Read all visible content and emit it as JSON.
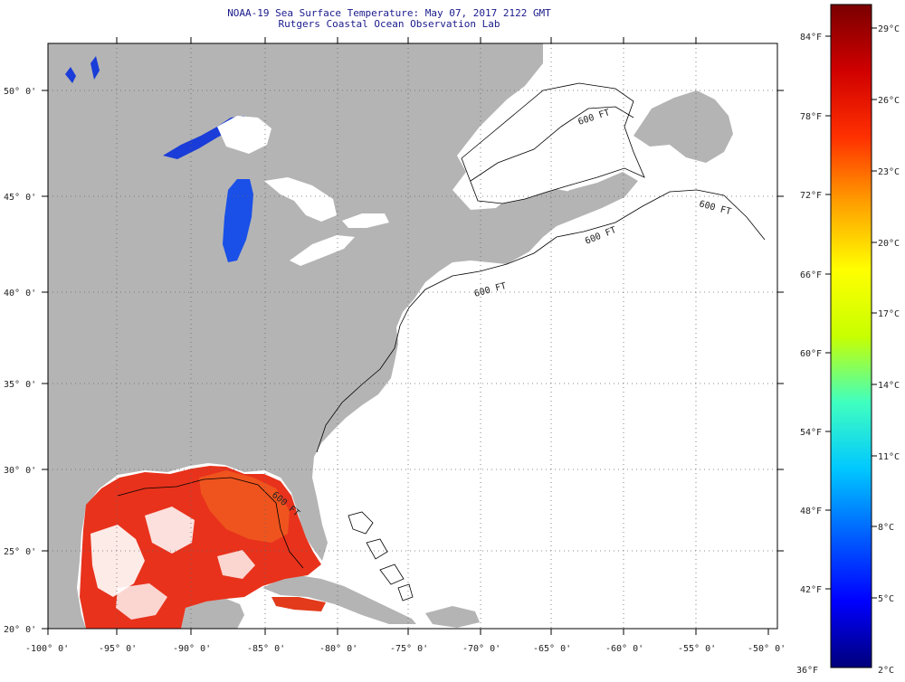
{
  "header": {
    "title_line1": "NOAA-19 Sea Surface Temperature:  May 07, 2017 2122 GMT",
    "title_line2": "Rutgers Coastal Ocean Observation Lab"
  },
  "map": {
    "lat_labels": [
      "50° 0'",
      "45° 0'",
      "40° 0'",
      "35° 0'",
      "30° 0'",
      "25° 0'",
      "20° 0'"
    ],
    "lon_labels": [
      "-100° 0'",
      "-95° 0'",
      "-90° 0'",
      "-85° 0'",
      "-80° 0'",
      "-75° 0'",
      "-70° 0'",
      "-65° 0'",
      "-60° 0'",
      "-55° 0'",
      "-50° 0'"
    ],
    "isobath_labels": [
      "600 FT",
      "600 FT",
      "600 FT",
      "600 FT",
      "600 FT"
    ],
    "colors": {
      "land": "#b4b4b4",
      "ocean": "#ffffff",
      "gulf_warm": "#e8321c",
      "gulf_hot": "#f05a1e",
      "lakes": "#1a3cd8"
    }
  },
  "colorbar": {
    "f_labels": [
      "84°F",
      "78°F",
      "72°F",
      "66°F",
      "60°F",
      "54°F",
      "48°F",
      "42°F",
      "36°F"
    ],
    "c_labels": [
      "29°C",
      "26°C",
      "23°C",
      "20°C",
      "17°C",
      "14°C",
      "11°C",
      "8°C",
      "5°C",
      "2°C"
    ],
    "gradient": [
      "#00007a",
      "#0000ff",
      "#0060ff",
      "#00c8ff",
      "#40ffc0",
      "#c8ff00",
      "#ffff00",
      "#ffa000",
      "#ff3000",
      "#d00000",
      "#7a0000"
    ]
  }
}
